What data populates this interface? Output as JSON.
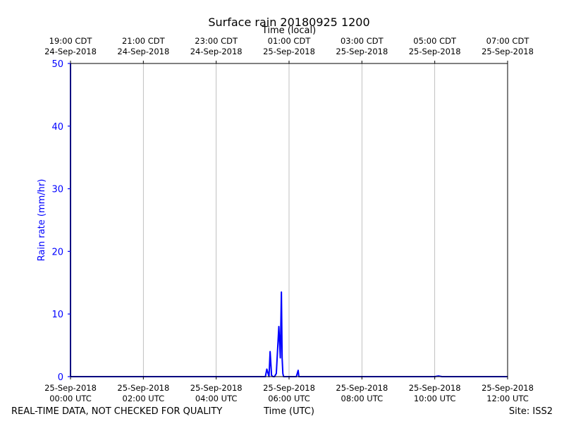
{
  "chart_data": {
    "type": "line",
    "title": "Surface rain 20180925 1200",
    "xlabel": "Time (UTC)",
    "xlabel_top": "Time (local)",
    "ylabel": "Rain rate (mm/hr)",
    "xlim_hours": [
      0,
      12
    ],
    "ylim": [
      0,
      50
    ],
    "grid": true,
    "series_color": "#0000ff",
    "bottom_ticks": [
      {
        "hour": 0,
        "line1": "25-Sep-2018",
        "line2": "00:00 UTC"
      },
      {
        "hour": 2,
        "line1": "25-Sep-2018",
        "line2": "02:00 UTC"
      },
      {
        "hour": 4,
        "line1": "25-Sep-2018",
        "line2": "04:00 UTC"
      },
      {
        "hour": 6,
        "line1": "25-Sep-2018",
        "line2": "06:00 UTC"
      },
      {
        "hour": 8,
        "line1": "25-Sep-2018",
        "line2": "08:00 UTC"
      },
      {
        "hour": 10,
        "line1": "25-Sep-2018",
        "line2": "10:00 UTC"
      },
      {
        "hour": 12,
        "line1": "25-Sep-2018",
        "line2": "12:00 UTC"
      }
    ],
    "top_ticks": [
      {
        "hour": 0,
        "line1": "19:00 CDT",
        "line2": "24-Sep-2018"
      },
      {
        "hour": 2,
        "line1": "21:00 CDT",
        "line2": "24-Sep-2018"
      },
      {
        "hour": 4,
        "line1": "23:00 CDT",
        "line2": "24-Sep-2018"
      },
      {
        "hour": 6,
        "line1": "01:00 CDT",
        "line2": "25-Sep-2018"
      },
      {
        "hour": 8,
        "line1": "03:00 CDT",
        "line2": "25-Sep-2018"
      },
      {
        "hour": 10,
        "line1": "05:00 CDT",
        "line2": "25-Sep-2018"
      },
      {
        "hour": 12,
        "line1": "07:00 CDT",
        "line2": "25-Sep-2018"
      }
    ],
    "y_ticks": [
      0,
      10,
      20,
      30,
      40,
      50
    ],
    "series": [
      {
        "x_hours": [
          0,
          0,
          0.02,
          5.35,
          5.39,
          5.42,
          5.45,
          5.48,
          5.52,
          5.56,
          5.6,
          5.65,
          5.72,
          5.76,
          5.79,
          5.81,
          5.83,
          5.85,
          5.87,
          5.88,
          5.91,
          6.2,
          6.25,
          6.27,
          6.3,
          10.0,
          10.1,
          10.2,
          12.0
        ],
        "values": [
          50,
          0,
          0,
          0,
          1.2,
          0.6,
          0,
          4.0,
          0.2,
          0,
          0,
          0.5,
          8.0,
          3.0,
          13.5,
          3.0,
          0.5,
          0,
          0,
          0,
          0,
          0,
          1.0,
          0,
          0,
          0,
          0.1,
          0,
          0
        ]
      }
    ],
    "footer_left": "REAL-TIME DATA, NOT CHECKED FOR QUALITY",
    "footer_right": "Site: ISS2"
  }
}
